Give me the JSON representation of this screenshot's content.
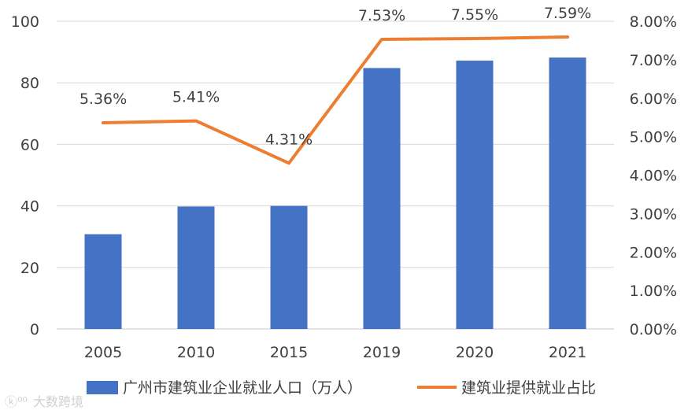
{
  "chart_data": {
    "type": "bar+line",
    "categories": [
      "2005",
      "2010",
      "2015",
      "2019",
      "2020",
      "2021"
    ],
    "series": [
      {
        "name": "广州市建筑业企业就业人口（万人）",
        "type": "bar",
        "axis": "left",
        "color": "#4472C4",
        "values": [
          30.8,
          39.8,
          40.0,
          84.8,
          87.2,
          88.2
        ]
      },
      {
        "name": "建筑业提供就业占比",
        "type": "line",
        "axis": "right",
        "color": "#ED7D31",
        "values": [
          5.36,
          5.41,
          4.31,
          7.53,
          7.55,
          7.59
        ],
        "labels": [
          "5.36%",
          "5.41%",
          "4.31%",
          "7.53%",
          "7.55%",
          "7.59%"
        ]
      }
    ],
    "y_left": {
      "min": 0,
      "max": 100,
      "ticks": [
        "0",
        "20",
        "40",
        "60",
        "80",
        "100"
      ]
    },
    "y_right": {
      "min": 0,
      "max": 8,
      "ticks": [
        "0.00%",
        "1.00%",
        "2.00%",
        "3.00%",
        "4.00%",
        "5.00%",
        "6.00%",
        "7.00%",
        "8.00%"
      ]
    },
    "gridlines": true,
    "legend": "bottom"
  },
  "watermark": {
    "text": "大数跨境"
  }
}
